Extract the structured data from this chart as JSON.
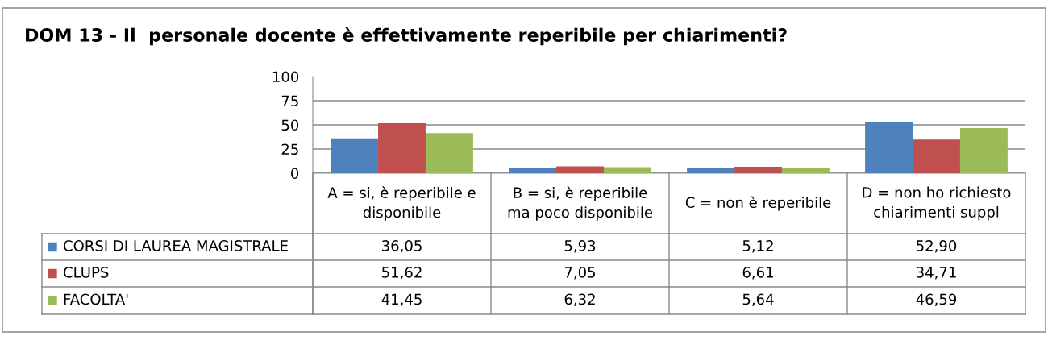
{
  "chart_data": {
    "type": "bar",
    "title": "DOM 13 - Il  personale docente è effettivamente reperibile per chiarimenti?",
    "categories": [
      "A = si, è reperibile e\ndisponibile",
      "B = si, è reperibile\nma poco disponibile",
      "C = non è reperibile",
      "D = non ho richiesto\nchiarimenti suppl"
    ],
    "series": [
      {
        "name": "CORSI DI LAUREA MAGISTRALE",
        "color": "#4f81bd",
        "values": [
          36.05,
          5.93,
          5.12,
          52.9
        ],
        "value_labels": [
          "36,05",
          "5,93",
          "5,12",
          "52,90"
        ]
      },
      {
        "name": "CLUPS",
        "color": "#c0504d",
        "values": [
          51.62,
          7.05,
          6.61,
          34.71
        ],
        "value_labels": [
          "51,62",
          "7,05",
          "6,61",
          "34,71"
        ]
      },
      {
        "name": "FACOLTA'",
        "color": "#9bbb59",
        "values": [
          41.45,
          6.32,
          5.64,
          46.59
        ],
        "value_labels": [
          "41,45",
          "6,32",
          "5,64",
          "46,59"
        ]
      }
    ],
    "ylim": [
      0,
      100
    ],
    "yticks": [
      0,
      25,
      50,
      75,
      100
    ],
    "grid": "y",
    "legend": "bottom left"
  }
}
